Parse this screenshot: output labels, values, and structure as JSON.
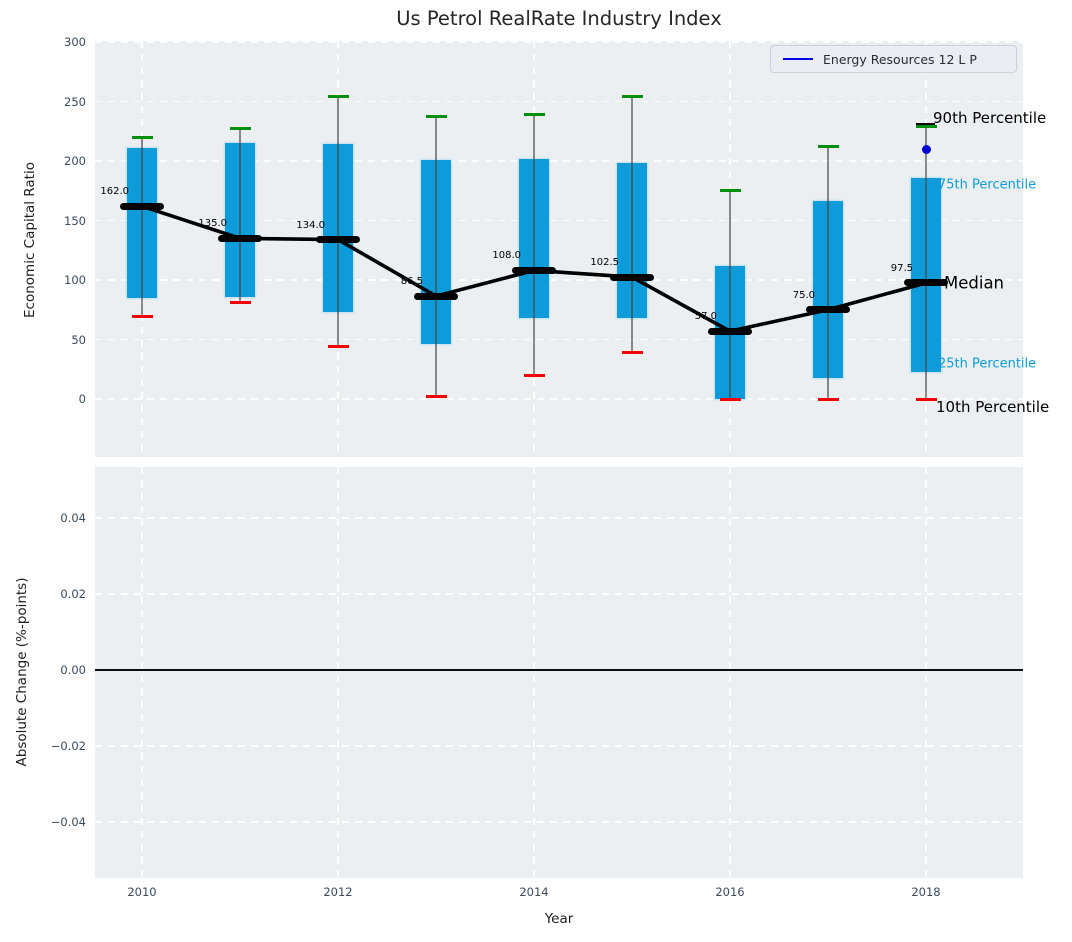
{
  "chart_data": [
    {
      "type": "box-whisker-timeseries",
      "title": "Us Petrol RealRate Industry Index",
      "xlabel": "Year",
      "ylabel": "Economic Capital Ratio",
      "legend": {
        "label": "Energy Resources 12 L P",
        "line_color": "#0000e8",
        "position": "upper right"
      },
      "grid": "white dashed, on",
      "ylim": [
        -48,
        301
      ],
      "yticks": {
        "values": [
          0,
          50,
          100,
          150,
          200,
          250,
          300
        ],
        "labels": [
          "0",
          "50",
          "100",
          "150",
          "200",
          "250",
          "300"
        ]
      },
      "xticks": {
        "values": [
          2010,
          2012,
          2014,
          2016,
          2018
        ],
        "labels": [
          "2010",
          "2012",
          "2014",
          "2016",
          "2018"
        ]
      },
      "boxes": [
        {
          "year": 2010,
          "p90": 220,
          "p75": 211,
          "median": 162,
          "median_label": "162.0",
          "p25": 85,
          "p10": 69
        },
        {
          "year": 2011,
          "p90": 227,
          "p75": 215,
          "median": 135,
          "median_label": "135.0",
          "p25": 86,
          "p10": 81
        },
        {
          "year": 2012,
          "p90": 254,
          "p75": 214,
          "median": 134,
          "median_label": "134.0",
          "p25": 73,
          "p10": 44
        },
        {
          "year": 2013,
          "p90": 237,
          "p75": 201,
          "median": 86.5,
          "median_label": "86.5",
          "p25": 46,
          "p10": 2
        },
        {
          "year": 2014,
          "p90": 239,
          "p75": 202,
          "median": 108,
          "median_label": "108.0",
          "p25": 68,
          "p10": 20
        },
        {
          "year": 2015,
          "p90": 254,
          "p75": 198,
          "median": 102.5,
          "median_label": "102.5",
          "p25": 68,
          "p10": 39
        },
        {
          "year": 2016,
          "p90": 175,
          "p75": 112,
          "median": 57,
          "median_label": "57.0",
          "p25": 0,
          "p10": 0
        },
        {
          "year": 2017,
          "p90": 212,
          "p75": 166,
          "median": 75,
          "median_label": "75.0",
          "p25": 18,
          "p10": 0
        },
        {
          "year": 2018,
          "p90": 229,
          "p75": 186,
          "median": 97.5,
          "median_label": "97.5",
          "p25": 23,
          "p10": 0
        }
      ],
      "extra_point": {
        "series": "Energy Resources 12 L P",
        "year": 2018,
        "value": 210,
        "color": "#0000d2"
      },
      "annotations": [
        {
          "id": "p90",
          "text": "90th Percentile",
          "color": "#000000"
        },
        {
          "id": "p75",
          "text": "75th Percentile",
          "color": "#0d9cd9"
        },
        {
          "id": "median",
          "text": "Median",
          "color": "#000000"
        },
        {
          "id": "p25",
          "text": "25th Percentile",
          "color": "#0d9cd9"
        },
        {
          "id": "p10",
          "text": "10th Percentile",
          "color": "#000000"
        }
      ],
      "colors": {
        "box": "#0d9cd9",
        "p90_cap": "#008f0b",
        "p10_cap": "#f20000",
        "median": "#000000",
        "panel_bg": "#ebeff1"
      }
    },
    {
      "type": "line",
      "ylabel": "Absolute Change (%-points)",
      "ylim": [
        -0.0547,
        0.0534
      ],
      "yticks": {
        "values": [
          0.04,
          0.02,
          0,
          -0.02,
          -0.04
        ],
        "labels": [
          "0.04",
          "0.02",
          "0.00",
          "−0.02",
          "−0.04"
        ]
      },
      "xticks": {
        "values": [
          2010,
          2012,
          2014,
          2016,
          2018
        ],
        "labels": [
          "2010",
          "2012",
          "2014",
          "2016",
          "2018"
        ]
      },
      "zero_line": 0,
      "series": []
    }
  ]
}
